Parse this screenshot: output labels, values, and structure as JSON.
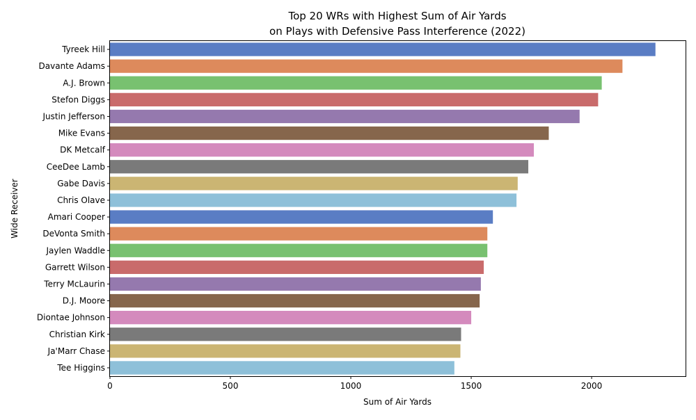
{
  "chart_data": {
    "type": "bar",
    "orientation": "horizontal",
    "title_line1": "Top 20 WRs with Highest Sum of Air Yards",
    "title_line2": "on Plays with Defensive Pass Interference (2022)",
    "xlabel": "Sum of Air Yards",
    "ylabel": "Wide Receiver",
    "xlim": [
      0,
      2390
    ],
    "xticks": [
      0,
      500,
      1000,
      1500,
      2000
    ],
    "grid": false,
    "categories": [
      "Tyreek Hill",
      "Davante Adams",
      "A.J. Brown",
      "Stefon Diggs",
      "Justin Jefferson",
      "Mike Evans",
      "DK Metcalf",
      "CeeDee Lamb",
      "Gabe Davis",
      "Chris Olave",
      "Amari Cooper",
      "DeVonta Smith",
      "Jaylen Waddle",
      "Garrett Wilson",
      "Terry McLaurin",
      "D.J. Moore",
      "Diontae Johnson",
      "Christian Kirk",
      "Ja'Marr Chase",
      "Tee Higgins"
    ],
    "values": [
      2265,
      2128,
      2042,
      2027,
      1950,
      1822,
      1760,
      1737,
      1693,
      1688,
      1590,
      1567,
      1567,
      1552,
      1540,
      1535,
      1500,
      1458,
      1455,
      1430
    ],
    "colors": [
      "#5a7dc4",
      "#dd8a5c",
      "#78c170",
      "#c96b6b",
      "#9579ae",
      "#86664c",
      "#d48abd",
      "#7a7a7a",
      "#cbb573",
      "#8ec0d9"
    ]
  }
}
